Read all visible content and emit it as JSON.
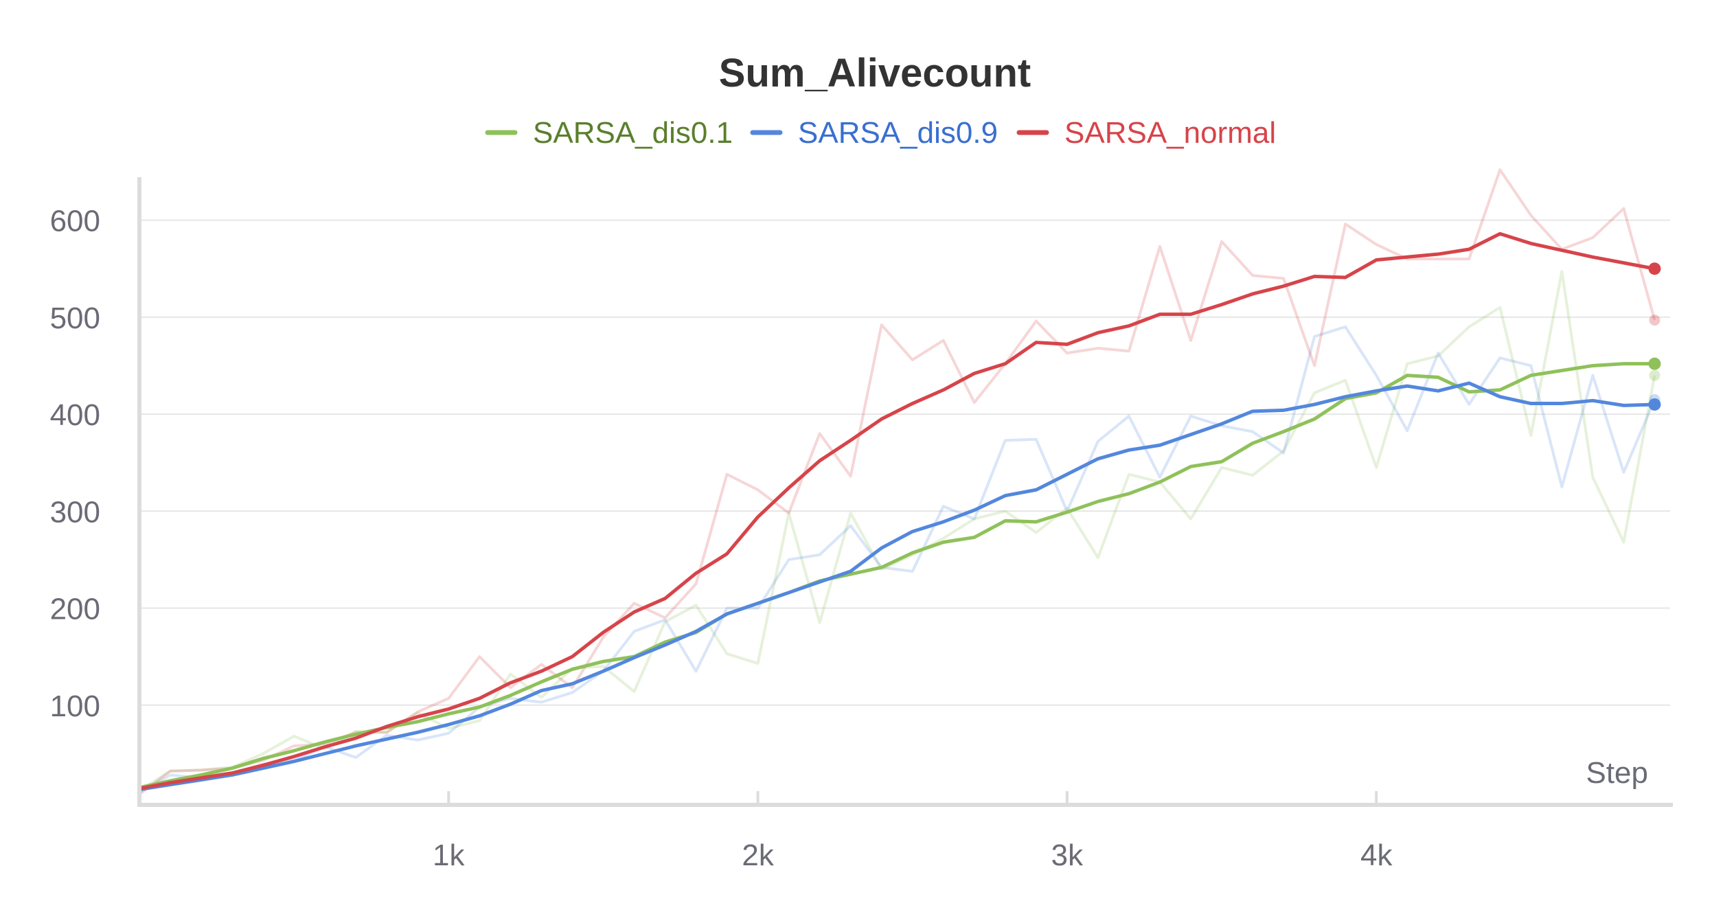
{
  "chart_data": {
    "type": "line",
    "title": "Sum_Alivecount",
    "xlabel": "Step",
    "ylabel": "",
    "xlim": [
      0,
      4950
    ],
    "ylim": [
      0,
      650
    ],
    "x_ticks": [
      1000,
      2000,
      3000,
      4000
    ],
    "x_tick_labels": [
      "1k",
      "2k",
      "3k",
      "4k"
    ],
    "y_ticks": [
      100,
      200,
      300,
      400,
      500,
      600
    ],
    "y_tick_labels": [
      "100",
      "200",
      "300",
      "400",
      "500",
      "600"
    ],
    "grid": true,
    "legend_position": "top-center",
    "series": [
      {
        "name": "SARSA_dis0.1",
        "color": "#8fc15a",
        "label_color": "#5a7f2c",
        "x": [
          0,
          100,
          200,
          300,
          400,
          500,
          600,
          700,
          800,
          900,
          1000,
          1100,
          1200,
          1300,
          1400,
          1500,
          1600,
          1700,
          1800,
          1900,
          2000,
          2100,
          2200,
          2300,
          2400,
          2500,
          2600,
          2700,
          2800,
          2900,
          3000,
          3100,
          3200,
          3300,
          3400,
          3500,
          3600,
          3700,
          3800,
          3900,
          4000,
          4100,
          4200,
          4300,
          4400,
          4500,
          4600,
          4700,
          4800,
          4900
        ],
        "smoothed": [
          15,
          22,
          28,
          35,
          45,
          53,
          62,
          70,
          77,
          83,
          91,
          98,
          110,
          124,
          137,
          145,
          150,
          165,
          175,
          194,
          205,
          216,
          228,
          235,
          242,
          257,
          268,
          273,
          290,
          289,
          299,
          310,
          318,
          330,
          346,
          351,
          370,
          382,
          395,
          416,
          422,
          440,
          438,
          423,
          425,
          440,
          445,
          450,
          452,
          452
        ],
        "raw": [
          12,
          32,
          33,
          36,
          50,
          68,
          55,
          73,
          72,
          92,
          76,
          84,
          132,
          108,
          138,
          140,
          114,
          186,
          203,
          153,
          143,
          298,
          185,
          298,
          240,
          255,
          272,
          292,
          300,
          278,
          303,
          252,
          338,
          330,
          292,
          345,
          337,
          362,
          422,
          435,
          345,
          452,
          460,
          490,
          510,
          378,
          547,
          335,
          268,
          440
        ]
      },
      {
        "name": "SARSA_dis0.9",
        "color": "#5387dd",
        "label_color": "#3a6fd0",
        "x": [
          0,
          100,
          200,
          300,
          400,
          500,
          600,
          700,
          800,
          900,
          1000,
          1100,
          1200,
          1300,
          1400,
          1500,
          1600,
          1700,
          1800,
          1900,
          2000,
          2100,
          2200,
          2300,
          2400,
          2500,
          2600,
          2700,
          2800,
          2900,
          3000,
          3100,
          3200,
          3300,
          3400,
          3500,
          3600,
          3700,
          3800,
          3900,
          4000,
          4100,
          4200,
          4300,
          4400,
          4500,
          4600,
          4700,
          4800,
          4900
        ],
        "smoothed": [
          13,
          18,
          23,
          28,
          35,
          42,
          50,
          58,
          65,
          72,
          80,
          89,
          101,
          115,
          122,
          135,
          149,
          162,
          176,
          194,
          205,
          216,
          227,
          238,
          262,
          279,
          289,
          301,
          316,
          322,
          338,
          354,
          363,
          368,
          379,
          390,
          403,
          404,
          410,
          418,
          424,
          429,
          424,
          432,
          418,
          411,
          411,
          414,
          409,
          410
        ],
        "raw": [
          10,
          28,
          25,
          30,
          39,
          43,
          57,
          46,
          69,
          64,
          71,
          98,
          107,
          103,
          113,
          135,
          176,
          188,
          135,
          200,
          200,
          250,
          255,
          285,
          242,
          238,
          305,
          292,
          373,
          374,
          300,
          372,
          398,
          335,
          398,
          388,
          382,
          360,
          480,
          490,
          440,
          383,
          463,
          410,
          458,
          450,
          325,
          440,
          340,
          415
        ]
      },
      {
        "name": "SARSA_normal",
        "color": "#d6444a",
        "label_color": "#d6444a",
        "x": [
          0,
          100,
          200,
          300,
          400,
          500,
          600,
          700,
          800,
          900,
          1000,
          1100,
          1200,
          1300,
          1400,
          1500,
          1600,
          1700,
          1800,
          1900,
          2000,
          2100,
          2200,
          2300,
          2400,
          2500,
          2600,
          2700,
          2800,
          2900,
          3000,
          3100,
          3200,
          3300,
          3400,
          3500,
          3600,
          3700,
          3800,
          3900,
          4000,
          4100,
          4200,
          4300,
          4400,
          4500,
          4600,
          4700,
          4800,
          4900
        ],
        "smoothed": [
          14,
          20,
          25,
          30,
          38,
          47,
          57,
          66,
          78,
          88,
          96,
          107,
          123,
          135,
          150,
          175,
          196,
          210,
          236,
          256,
          294,
          324,
          352,
          373,
          395,
          411,
          425,
          442,
          452,
          474,
          472,
          484,
          491,
          503,
          503,
          513,
          524,
          532,
          542,
          541,
          559,
          562,
          565,
          570,
          586,
          576,
          569,
          562,
          556,
          550
        ],
        "raw": [
          8,
          32,
          33,
          35,
          43,
          58,
          60,
          72,
          72,
          93,
          107,
          150,
          118,
          142,
          118,
          170,
          205,
          190,
          225,
          338,
          322,
          298,
          380,
          336,
          492,
          456,
          476,
          412,
          452,
          496,
          463,
          468,
          465,
          573,
          476,
          578,
          543,
          540,
          450,
          596,
          575,
          560,
          560,
          560,
          652,
          605,
          570,
          582,
          612,
          497
        ]
      }
    ]
  }
}
